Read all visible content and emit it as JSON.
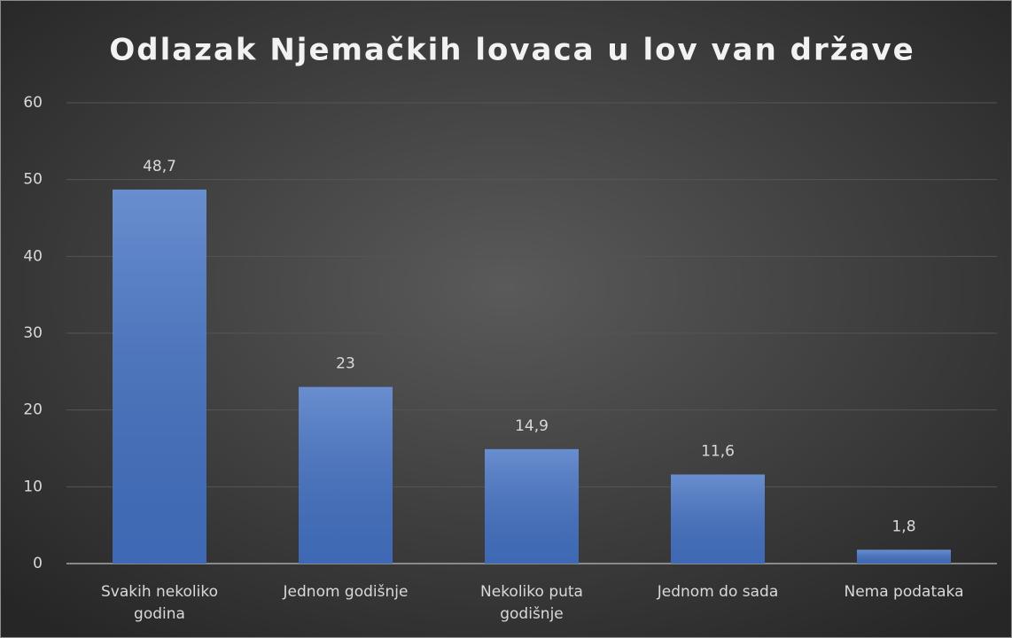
{
  "chart_data": {
    "type": "bar",
    "title": "Odlazak Njemačkih lovaca u lov van države",
    "categories": [
      "Svakih nekoliko godina",
      "Jednom godišnje",
      "Nekoliko puta godišnje",
      "Jednom do sada",
      "Nema podataka"
    ],
    "values": [
      48.7,
      23,
      14.9,
      11.6,
      1.8
    ],
    "value_labels": [
      "48,7",
      "23",
      "14,9",
      "11,6",
      "1,8"
    ],
    "color": "#4472c4",
    "ylim": [
      0,
      60
    ],
    "yticks": [
      0,
      10,
      20,
      30,
      40,
      50,
      60
    ],
    "grid": true
  }
}
